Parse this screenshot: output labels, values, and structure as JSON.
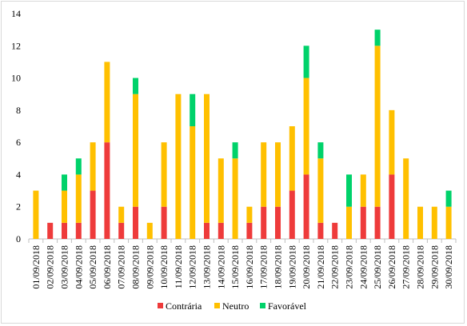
{
  "chart_data": {
    "type": "bar",
    "stacked": true,
    "categories": [
      "01/09/2018",
      "02/09/2018",
      "03/09/2018",
      "04/09/2018",
      "05/09/2018",
      "06/09/2018",
      "07/09/2018",
      "08/09/2018",
      "09/09/2018",
      "10/09/2018",
      "11/09/2018",
      "12/09/2018",
      "13/09/2018",
      "14/09/2018",
      "15/09/2018",
      "16/09/2018",
      "17/09/2018",
      "18/09/2018",
      "19/09/2018",
      "20/09/2018",
      "21/09/2018",
      "22/09/2018",
      "23/09/2018",
      "24/09/2018",
      "25/09/2018",
      "26/09/2018",
      "27/09/2018",
      "28/09/2018",
      "29/09/2018",
      "30/09/2018"
    ],
    "series": [
      {
        "name": "Contrária",
        "color": "#ee3b3b",
        "values": [
          0,
          1,
          1,
          1,
          3,
          6,
          1,
          2,
          0,
          2,
          0,
          0,
          1,
          1,
          0,
          1,
          2,
          2,
          3,
          4,
          1,
          1,
          0,
          2,
          2,
          4,
          0,
          0,
          0,
          0
        ]
      },
      {
        "name": "Neutro",
        "color": "#ffc000",
        "values": [
          3,
          0,
          2,
          3,
          3,
          5,
          1,
          7,
          1,
          4,
          9,
          7,
          8,
          4,
          5,
          1,
          4,
          4,
          4,
          6,
          4,
          0,
          2,
          2,
          10,
          4,
          5,
          2,
          2,
          2
        ]
      },
      {
        "name": "Favorável",
        "color": "#00d26a",
        "values": [
          0,
          0,
          1,
          1,
          0,
          0,
          0,
          1,
          0,
          0,
          0,
          2,
          0,
          0,
          1,
          0,
          0,
          0,
          0,
          2,
          1,
          0,
          2,
          0,
          1,
          0,
          0,
          0,
          0,
          1
        ]
      }
    ],
    "ylim": [
      0,
      14
    ],
    "yticks": [
      "0",
      "2",
      "4",
      "6",
      "8",
      "10",
      "12",
      "14"
    ],
    "grid": false,
    "legend_position": "bottom"
  }
}
